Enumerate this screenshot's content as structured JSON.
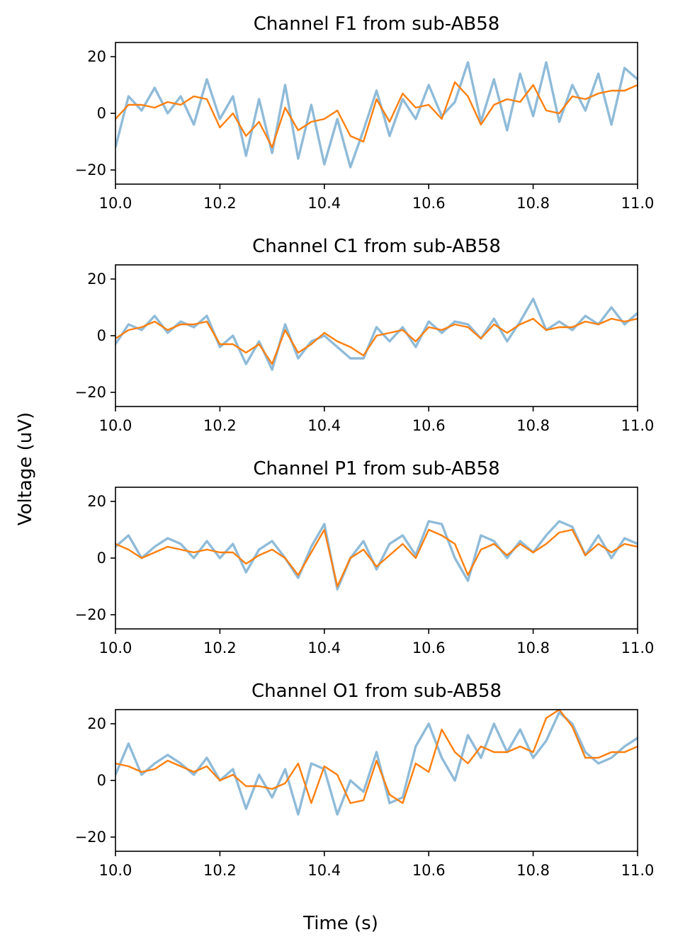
{
  "figure": {
    "xlabel": "Time (s)",
    "ylabel": "Voltage (uV)"
  },
  "colors": {
    "raw": "#1f77b4",
    "smoothed": "#ff7f0e",
    "axes": "#000000"
  },
  "chart_data": [
    {
      "type": "line",
      "title": "Channel F1 from sub-AB58",
      "xlim": [
        10.0,
        11.0
      ],
      "ylim": [
        -25,
        25
      ],
      "xticks": [
        "10.0",
        "10.2",
        "10.4",
        "10.6",
        "10.8",
        "11.0"
      ],
      "yticks": [
        "20",
        "0",
        "−20"
      ],
      "x": [
        10.0,
        10.025,
        10.05,
        10.075,
        10.1,
        10.125,
        10.15,
        10.175,
        10.2,
        10.225,
        10.25,
        10.275,
        10.3,
        10.325,
        10.35,
        10.375,
        10.4,
        10.425,
        10.45,
        10.475,
        10.5,
        10.525,
        10.55,
        10.575,
        10.6,
        10.625,
        10.65,
        10.675,
        10.7,
        10.725,
        10.75,
        10.775,
        10.8,
        10.825,
        10.85,
        10.875,
        10.9,
        10.925,
        10.95,
        10.975,
        11.0
      ],
      "series": [
        {
          "values": [
            -12,
            6,
            1,
            9,
            0,
            6,
            -4,
            12,
            -2,
            6,
            -15,
            5,
            -14,
            10,
            -16,
            3,
            -18,
            -2,
            -19,
            -6,
            8,
            -8,
            5,
            -2,
            10,
            -1,
            4,
            18,
            -3,
            12,
            -6,
            14,
            -1,
            18,
            -3,
            10,
            1,
            14,
            -4,
            16,
            12
          ]
        },
        {
          "values": [
            -2,
            3,
            3,
            2,
            4,
            3,
            6,
            5,
            -5,
            0,
            -8,
            -3,
            -12,
            2,
            -6,
            -3,
            -2,
            1,
            -8,
            -10,
            5,
            -3,
            7,
            2,
            3,
            -2,
            11,
            6,
            -4,
            3,
            5,
            4,
            10,
            1,
            0,
            6,
            5,
            7,
            8,
            8,
            10
          ]
        }
      ]
    },
    {
      "type": "line",
      "title": "Channel C1 from sub-AB58",
      "xlim": [
        10.0,
        11.0
      ],
      "ylim": [
        -25,
        25
      ],
      "xticks": [
        "10.0",
        "10.2",
        "10.4",
        "10.6",
        "10.8",
        "11.0"
      ],
      "yticks": [
        "20",
        "0",
        "−20"
      ],
      "x": [
        10.0,
        10.025,
        10.05,
        10.075,
        10.1,
        10.125,
        10.15,
        10.175,
        10.2,
        10.225,
        10.25,
        10.275,
        10.3,
        10.325,
        10.35,
        10.375,
        10.4,
        10.425,
        10.45,
        10.475,
        10.5,
        10.525,
        10.55,
        10.575,
        10.6,
        10.625,
        10.65,
        10.675,
        10.7,
        10.725,
        10.75,
        10.775,
        10.8,
        10.825,
        10.85,
        10.875,
        10.9,
        10.925,
        10.95,
        10.975,
        11.0
      ],
      "series": [
        {
          "values": [
            -3,
            4,
            2,
            7,
            1,
            5,
            3,
            7,
            -4,
            0,
            -10,
            -2,
            -12,
            4,
            -8,
            -2,
            0,
            -4,
            -8,
            -8,
            3,
            -2,
            3,
            -4,
            5,
            1,
            5,
            4,
            -1,
            6,
            -2,
            5,
            13,
            2,
            5,
            2,
            7,
            4,
            10,
            4,
            8
          ]
        },
        {
          "values": [
            -1,
            2,
            3,
            5,
            2,
            4,
            4,
            5,
            -3,
            -3,
            -6,
            -3,
            -10,
            2,
            -6,
            -3,
            1,
            -2,
            -4,
            -7,
            0,
            1,
            2,
            -2,
            3,
            2,
            4,
            3,
            -1,
            4,
            1,
            4,
            6,
            2,
            3,
            3,
            5,
            4,
            6,
            5,
            6
          ]
        }
      ]
    },
    {
      "type": "line",
      "title": "Channel P1 from sub-AB58",
      "xlim": [
        10.0,
        11.0
      ],
      "ylim": [
        -25,
        25
      ],
      "xticks": [
        "10.0",
        "10.2",
        "10.4",
        "10.6",
        "10.8",
        "11.0"
      ],
      "yticks": [
        "20",
        "0",
        "−20"
      ],
      "x": [
        10.0,
        10.025,
        10.05,
        10.075,
        10.1,
        10.125,
        10.15,
        10.175,
        10.2,
        10.225,
        10.25,
        10.275,
        10.3,
        10.325,
        10.35,
        10.375,
        10.4,
        10.425,
        10.45,
        10.475,
        10.5,
        10.525,
        10.55,
        10.575,
        10.6,
        10.625,
        10.65,
        10.675,
        10.7,
        10.725,
        10.75,
        10.775,
        10.8,
        10.825,
        10.85,
        10.875,
        10.9,
        10.925,
        10.95,
        10.975,
        11.0
      ],
      "series": [
        {
          "values": [
            4,
            8,
            0,
            4,
            7,
            5,
            0,
            6,
            0,
            5,
            -5,
            3,
            6,
            0,
            -7,
            4,
            12,
            -11,
            0,
            6,
            -4,
            5,
            8,
            1,
            13,
            12,
            0,
            -8,
            8,
            6,
            0,
            6,
            2,
            8,
            13,
            11,
            1,
            8,
            0,
            7,
            5
          ]
        },
        {
          "values": [
            5,
            3,
            0,
            2,
            4,
            3,
            2,
            3,
            2,
            2,
            -2,
            1,
            3,
            0,
            -6,
            2,
            10,
            -10,
            0,
            3,
            -3,
            1,
            5,
            0,
            10,
            8,
            5,
            -6,
            3,
            5,
            1,
            5,
            2,
            5,
            9,
            10,
            1,
            5,
            2,
            5,
            4
          ]
        }
      ]
    },
    {
      "type": "line",
      "title": "Channel O1 from sub-AB58",
      "xlim": [
        10.0,
        11.0
      ],
      "ylim": [
        -25,
        25
      ],
      "xticks": [
        "10.0",
        "10.2",
        "10.4",
        "10.6",
        "10.8",
        "11.0"
      ],
      "yticks": [
        "20",
        "0",
        "−20"
      ],
      "x": [
        10.0,
        10.025,
        10.05,
        10.075,
        10.1,
        10.125,
        10.15,
        10.175,
        10.2,
        10.225,
        10.25,
        10.275,
        10.3,
        10.325,
        10.35,
        10.375,
        10.4,
        10.425,
        10.45,
        10.475,
        10.5,
        10.525,
        10.55,
        10.575,
        10.6,
        10.625,
        10.65,
        10.675,
        10.7,
        10.725,
        10.75,
        10.775,
        10.8,
        10.825,
        10.85,
        10.875,
        10.9,
        10.925,
        10.95,
        10.975,
        11.0
      ],
      "series": [
        {
          "values": [
            2,
            13,
            2,
            6,
            9,
            6,
            2,
            8,
            0,
            4,
            -10,
            2,
            -6,
            4,
            -12,
            6,
            4,
            -12,
            0,
            -4,
            10,
            -8,
            -6,
            12,
            20,
            8,
            0,
            16,
            8,
            20,
            10,
            18,
            8,
            14,
            24,
            20,
            10,
            6,
            8,
            12,
            15
          ]
        },
        {
          "values": [
            6,
            5,
            3,
            4,
            7,
            5,
            3,
            5,
            0,
            2,
            -2,
            -2,
            -3,
            -1,
            6,
            -8,
            5,
            2,
            -8,
            -7,
            7,
            -5,
            -8,
            6,
            3,
            18,
            10,
            6,
            12,
            10,
            10,
            12,
            10,
            22,
            25,
            19,
            8,
            8,
            10,
            10,
            12
          ]
        }
      ]
    }
  ]
}
